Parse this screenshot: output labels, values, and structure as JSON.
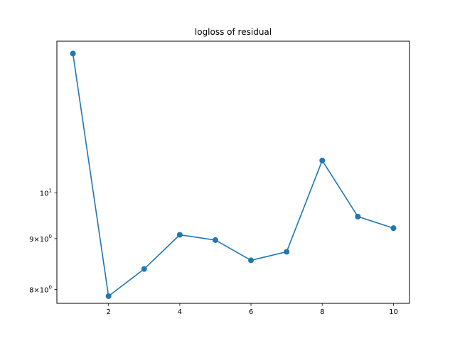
{
  "chart_data": {
    "type": "line",
    "title": "logloss of residual",
    "xlabel": "",
    "ylabel": "",
    "yscale": "log",
    "xlim": [
      0.55,
      10.45
    ],
    "ylim": [
      7.75,
      14.2
    ],
    "x_ticks": [
      2,
      4,
      6,
      8,
      10
    ],
    "x_tick_labels": [
      "2",
      "4",
      "6",
      "8",
      "10"
    ],
    "y_ticks": [
      8,
      9,
      10
    ],
    "y_tick_labels": [
      {
        "base": "8×10",
        "exp": "0"
      },
      {
        "base": "9×10",
        "exp": "0"
      },
      {
        "base": "10",
        "exp": "1"
      }
    ],
    "grid": false,
    "legend": "none",
    "series": [
      {
        "color": "#1f77b4",
        "marker": "circle",
        "x": [
          1,
          2,
          3,
          4,
          5,
          6,
          7,
          8,
          9,
          10
        ],
        "values": [
          13.8,
          7.88,
          8.39,
          9.08,
          8.97,
          8.56,
          8.73,
          10.78,
          9.47,
          9.22
        ]
      }
    ]
  }
}
